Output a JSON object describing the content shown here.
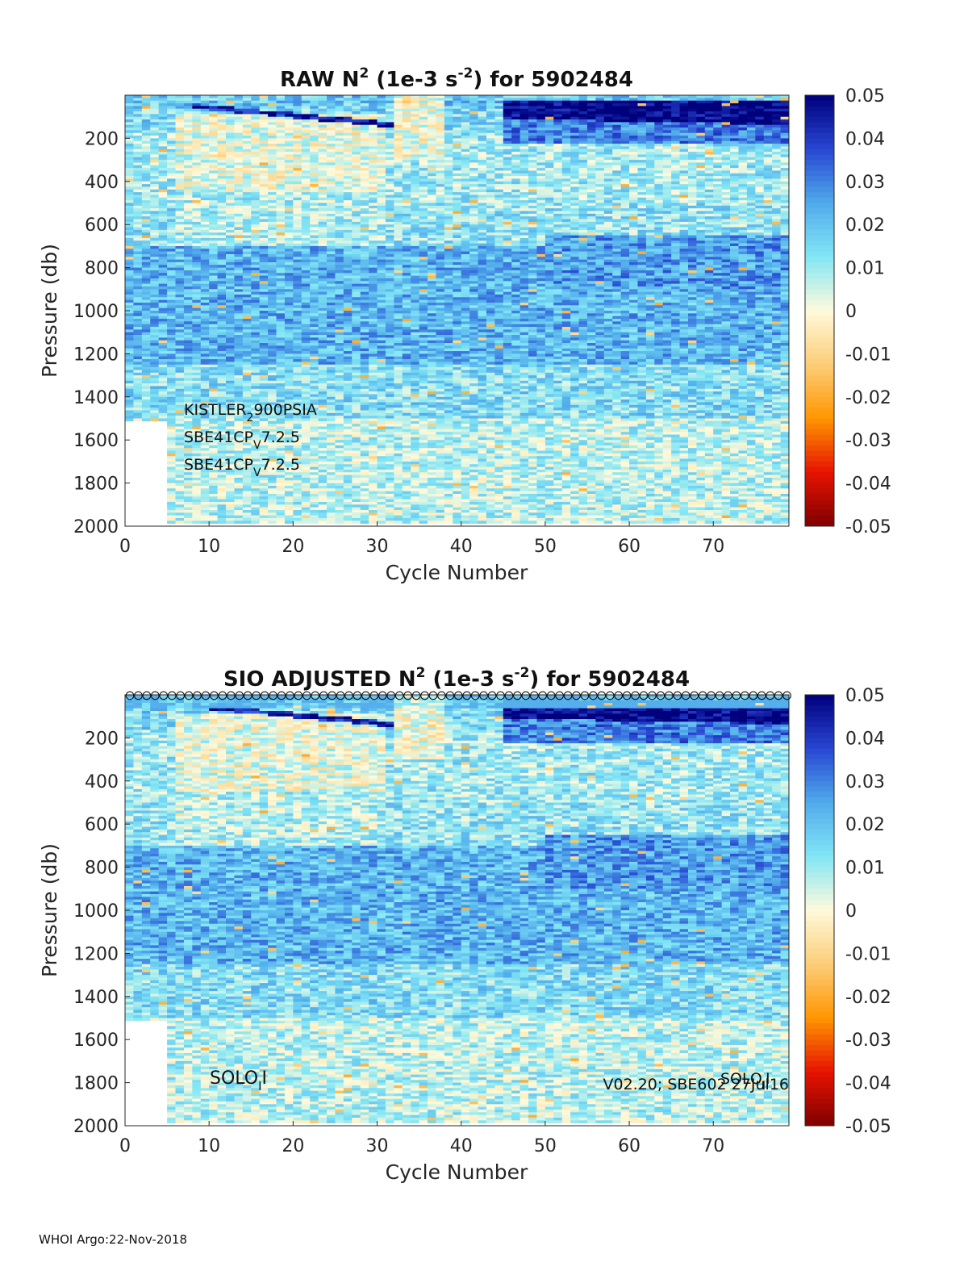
{
  "footer": "WHOI Argo:22-Nov-2018",
  "chart_data": [
    {
      "type": "heatmap",
      "title": {
        "prefix": "RAW N",
        "sup": "2",
        "mid": " (1e-3 s",
        "sup2": "-2",
        "suffix": ") for 5902484"
      },
      "xlabel": "Cycle Number",
      "ylabel": "Pressure (db)",
      "xlim": [
        0,
        79
      ],
      "ylim": [
        0,
        2000
      ],
      "y_reversed": true,
      "xticks": [
        0,
        10,
        20,
        30,
        40,
        50,
        60,
        70
      ],
      "yticks": [
        200,
        400,
        600,
        800,
        1000,
        1200,
        1400,
        1600,
        1800,
        2000
      ],
      "colorbar": {
        "range": [
          -0.05,
          0.05
        ],
        "ticks": [
          "0.05",
          "0.04",
          "0.03",
          "0.02",
          "0.01",
          "0",
          "-0.01",
          "-0.02",
          "-0.03",
          "-0.04",
          "-0.05"
        ],
        "colormap": "jet-like diverging"
      },
      "annotations": [
        {
          "text": "KISTLER",
          "sub": "2",
          "rest": "900PSIA"
        },
        {
          "text": "SBE41CP",
          "sub": "V",
          "rest": "7.2.5"
        },
        {
          "text": "SBE41CP",
          "sub": "V",
          "rest": "7.2.5"
        }
      ],
      "regions": [
        {
          "desc": "strong stratification near surface after cycle 45",
          "cycles": [
            45,
            79
          ],
          "pressure": [
            40,
            150
          ],
          "value": 0.05
        },
        {
          "desc": "thin high-N2 layer deepening",
          "cycles": [
            10,
            30
          ],
          "pressure": [
            60,
            120
          ],
          "value": 0.045
        },
        {
          "desc": "near-zero mixed layer",
          "cycles": [
            32,
            37
          ],
          "pressure": [
            40,
            300
          ],
          "value": 0.0
        },
        {
          "desc": "moderate band",
          "cycles": [
            0,
            79
          ],
          "pressure": [
            800,
            1200
          ],
          "value": 0.025
        },
        {
          "desc": "deep weak",
          "cycles": [
            0,
            79
          ],
          "pressure": [
            1400,
            2000
          ],
          "value": 0.007
        }
      ]
    },
    {
      "type": "heatmap",
      "title": {
        "prefix": "SIO  ADJUSTED N",
        "sup": "2",
        "mid": " (1e-3 s",
        "sup2": "-2",
        "suffix": ") for 5902484"
      },
      "xlabel": "Cycle Number",
      "ylabel": "Pressure (db)",
      "xlim": [
        0,
        79
      ],
      "ylim": [
        0,
        2000
      ],
      "y_reversed": true,
      "xticks": [
        0,
        10,
        20,
        30,
        40,
        50,
        60,
        70
      ],
      "yticks": [
        200,
        400,
        600,
        800,
        1000,
        1200,
        1400,
        1600,
        1800,
        2000
      ],
      "colorbar": {
        "range": [
          -0.05,
          0.05
        ],
        "ticks": [
          "0.05",
          "0.04",
          "0.03",
          "0.02",
          "0.01",
          "0",
          "-0.01",
          "-0.02",
          "-0.03",
          "-0.04",
          "-0.05"
        ],
        "colormap": "jet-like diverging"
      },
      "markers": {
        "shape": "circle",
        "count": 79,
        "at_pressure": 0
      },
      "annotations": [
        {
          "text": "SOLO",
          "sub": "I",
          "rest": "I"
        },
        {
          "text": "V02.20; SBE602 27Jul16"
        },
        {
          "text": "SOLO",
          "sub": "I",
          "rest": "I"
        }
      ]
    }
  ]
}
